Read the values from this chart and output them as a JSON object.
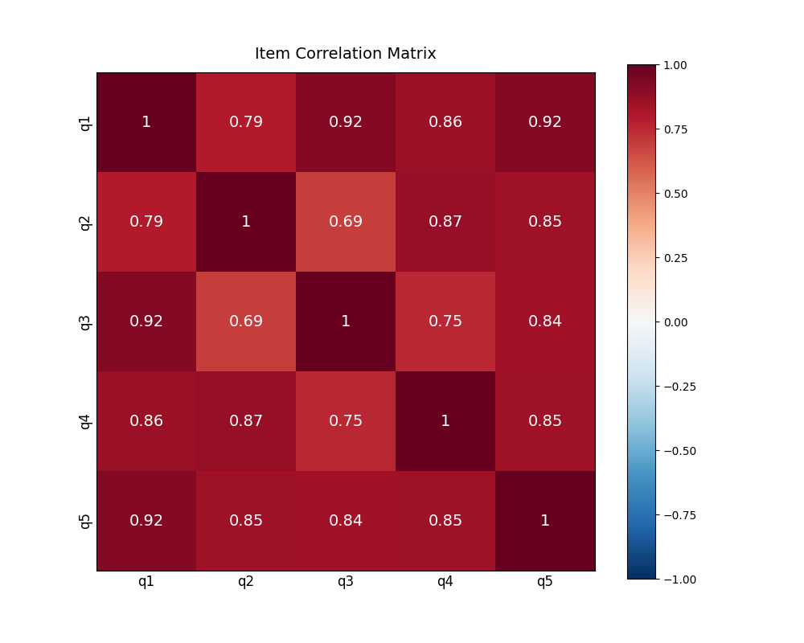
{
  "labels": [
    "q1",
    "q2",
    "q3",
    "q4",
    "q5"
  ],
  "matrix": [
    [
      1.0,
      0.79,
      0.92,
      0.86,
      0.92
    ],
    [
      0.79,
      1.0,
      0.69,
      0.87,
      0.85
    ],
    [
      0.92,
      0.69,
      1.0,
      0.75,
      0.84
    ],
    [
      0.86,
      0.87,
      0.75,
      1.0,
      0.85
    ],
    [
      0.92,
      0.85,
      0.84,
      0.85,
      1.0
    ]
  ],
  "title": "Item Correlation Matrix",
  "cmap": "RdBu_r",
  "vmin": -1.0,
  "vmax": 1.0,
  "text_color": "white",
  "text_fontsize": 14,
  "title_fontsize": 14,
  "figsize": [
    10,
    8
  ],
  "cbar_ticks": [
    -1.0,
    -0.75,
    -0.5,
    -0.25,
    0.0,
    0.25,
    0.5,
    0.75,
    1.0
  ],
  "xlabel_fontsize": 12,
  "ylabel_fontsize": 12,
  "cbar_fontsize": 10
}
